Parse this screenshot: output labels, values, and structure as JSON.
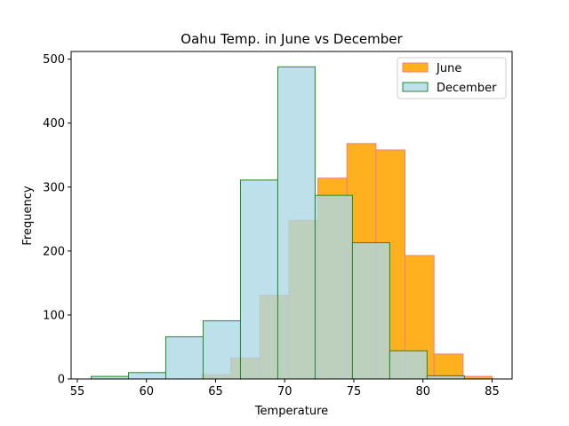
{
  "chart_data": {
    "type": "bar",
    "title": "Oahu Temp. in June vs December",
    "xlabel": "Temperature",
    "ylabel": "Frequency",
    "xlim": [
      54.55,
      86.45
    ],
    "ylim": [
      0,
      512
    ],
    "xticks": [
      55,
      60,
      65,
      70,
      75,
      80,
      85
    ],
    "yticks": [
      0,
      100,
      200,
      300,
      400,
      500
    ],
    "legend_position": "upper right",
    "grid": false,
    "series": [
      {
        "name": "June",
        "fill": "#ffa500",
        "stroke": "#e88080",
        "opacity": 0.88,
        "bins": [
          {
            "x0": 64.0,
            "x1": 66.1,
            "count": 7
          },
          {
            "x0": 66.1,
            "x1": 68.2,
            "count": 33
          },
          {
            "x0": 68.2,
            "x1": 70.3,
            "count": 131
          },
          {
            "x0": 70.3,
            "x1": 72.4,
            "count": 248
          },
          {
            "x0": 72.4,
            "x1": 74.5,
            "count": 314
          },
          {
            "x0": 74.5,
            "x1": 76.6,
            "count": 368
          },
          {
            "x0": 76.6,
            "x1": 78.7,
            "count": 358
          },
          {
            "x0": 78.7,
            "x1": 80.8,
            "count": 193
          },
          {
            "x0": 80.8,
            "x1": 82.9,
            "count": 39
          },
          {
            "x0": 82.9,
            "x1": 85.0,
            "count": 4
          }
        ]
      },
      {
        "name": "December",
        "fill": "#add8e6",
        "stroke": "#228b22",
        "opacity": 0.8,
        "bins": [
          {
            "x0": 56.0,
            "x1": 58.7,
            "count": 4
          },
          {
            "x0": 58.7,
            "x1": 61.4,
            "count": 10
          },
          {
            "x0": 61.4,
            "x1": 64.1,
            "count": 66
          },
          {
            "x0": 64.1,
            "x1": 66.8,
            "count": 91
          },
          {
            "x0": 66.8,
            "x1": 69.5,
            "count": 311
          },
          {
            "x0": 69.5,
            "x1": 72.2,
            "count": 488
          },
          {
            "x0": 72.2,
            "x1": 74.9,
            "count": 287
          },
          {
            "x0": 74.9,
            "x1": 77.6,
            "count": 213
          },
          {
            "x0": 77.6,
            "x1": 80.3,
            "count": 44
          },
          {
            "x0": 80.3,
            "x1": 83.0,
            "count": 5
          }
        ]
      }
    ]
  }
}
